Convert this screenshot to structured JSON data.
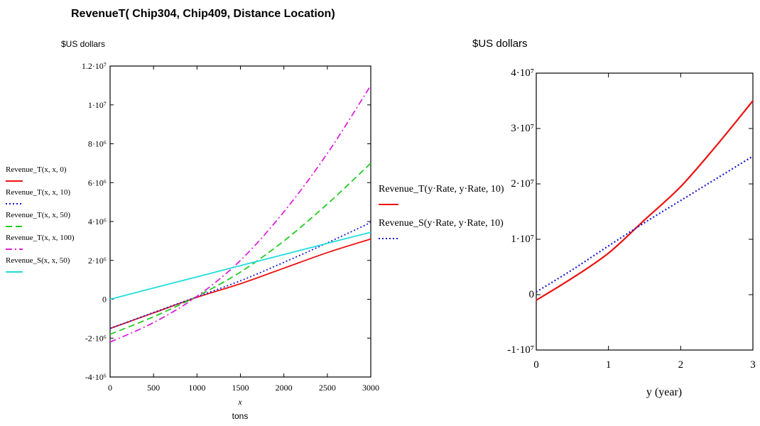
{
  "chart_data": [
    {
      "type": "line",
      "title": "RevenueT( Chip304, Chip409, Distance Location)",
      "ylabel": "$US dollars",
      "xlabel": "x",
      "xunit": "tons",
      "xlim": [
        0,
        3000
      ],
      "ylim": [
        -4000000,
        12000000
      ],
      "x_ticks": [
        0,
        500,
        1000,
        1500,
        2000,
        2500,
        3000
      ],
      "x_tick_labels": [
        "0",
        "500",
        "1000",
        "1500",
        "2000",
        "2500",
        "3000"
      ],
      "y_ticks": [
        -4000000,
        -2000000,
        0,
        2000000,
        4000000,
        6000000,
        8000000,
        10000000,
        12000000
      ],
      "y_tick_labels": [
        "-4·10⁶",
        "-2·10⁶",
        "0",
        "2·10⁶",
        "4·10⁶",
        "6·10⁶",
        "8·10⁶",
        "1·10⁷",
        "1.2·10⁷"
      ],
      "grid": false,
      "legend": "left",
      "series": [
        {
          "name": "Revenue_T(x, x, 0)",
          "color": "#ee1111",
          "dash": "solid",
          "x": [
            0,
            500,
            1000,
            1500,
            2000,
            2500,
            3000
          ],
          "y": [
            -1500000,
            -700000,
            100000,
            800000,
            1600000,
            2400000,
            3100000
          ]
        },
        {
          "name": "Revenue_T(x, x, 10)",
          "color": "#1a1ad0",
          "dash": "dotted",
          "x": [
            0,
            500,
            1000,
            1500,
            2000,
            2500,
            3000
          ],
          "y": [
            -1500000,
            -680000,
            130000,
            950000,
            1900000,
            2900000,
            3950000
          ]
        },
        {
          "name": "Revenue_T(x, x, 50)",
          "color": "#22cc22",
          "dash": "dashed",
          "x": [
            0,
            500,
            1000,
            1500,
            2000,
            2500,
            3000
          ],
          "y": [
            -1800000,
            -900000,
            150000,
            1400000,
            3000000,
            4900000,
            7000000
          ]
        },
        {
          "name": "Revenue_T(x, x, 100)",
          "color": "#dd22dd",
          "dash": "dashdot",
          "x": [
            0,
            500,
            1000,
            1500,
            2000,
            2500,
            3000
          ],
          "y": [
            -2200000,
            -1200000,
            150000,
            2000000,
            4500000,
            7500000,
            11000000
          ]
        },
        {
          "name": "Revenue_S(x, x, 50)",
          "color": "#22dddd",
          "dash": "solid",
          "x": [
            0,
            500,
            1000,
            1500,
            2000,
            2500,
            3000
          ],
          "y": [
            0,
            580000,
            1150000,
            1730000,
            2300000,
            2880000,
            3450000
          ]
        }
      ]
    },
    {
      "type": "line",
      "title": "",
      "ylabel": "$US dollars",
      "xlabel": "y    (year)",
      "xlim": [
        0,
        3
      ],
      "ylim": [
        -10000000,
        40000000
      ],
      "x_ticks": [
        0,
        1,
        2,
        3
      ],
      "x_tick_labels": [
        "0",
        "1",
        "2",
        "3"
      ],
      "y_ticks": [
        -10000000,
        0,
        10000000,
        20000000,
        30000000,
        40000000
      ],
      "y_tick_labels": [
        "-1·10⁷",
        "0",
        "1·10⁷",
        "2·10⁷",
        "3·10⁷",
        "4·10⁷"
      ],
      "grid": false,
      "legend": "left",
      "series": [
        {
          "name": "Revenue_T(y·Rate, y·Rate, 10)",
          "color": "#ee1111",
          "dash": "solid",
          "x": [
            0,
            0.5,
            1,
            1.5,
            2,
            2.5,
            3
          ],
          "y": [
            -1000000,
            3000000,
            7500000,
            13500000,
            19500000,
            27000000,
            35000000
          ]
        },
        {
          "name": "Revenue_S(y·Rate, y·Rate, 10)",
          "color": "#1a1ad0",
          "dash": "dotted",
          "x": [
            0,
            0.5,
            1,
            1.5,
            2,
            2.5,
            3
          ],
          "y": [
            500000,
            4500000,
            8800000,
            13000000,
            17000000,
            21000000,
            25000000
          ]
        }
      ]
    }
  ]
}
